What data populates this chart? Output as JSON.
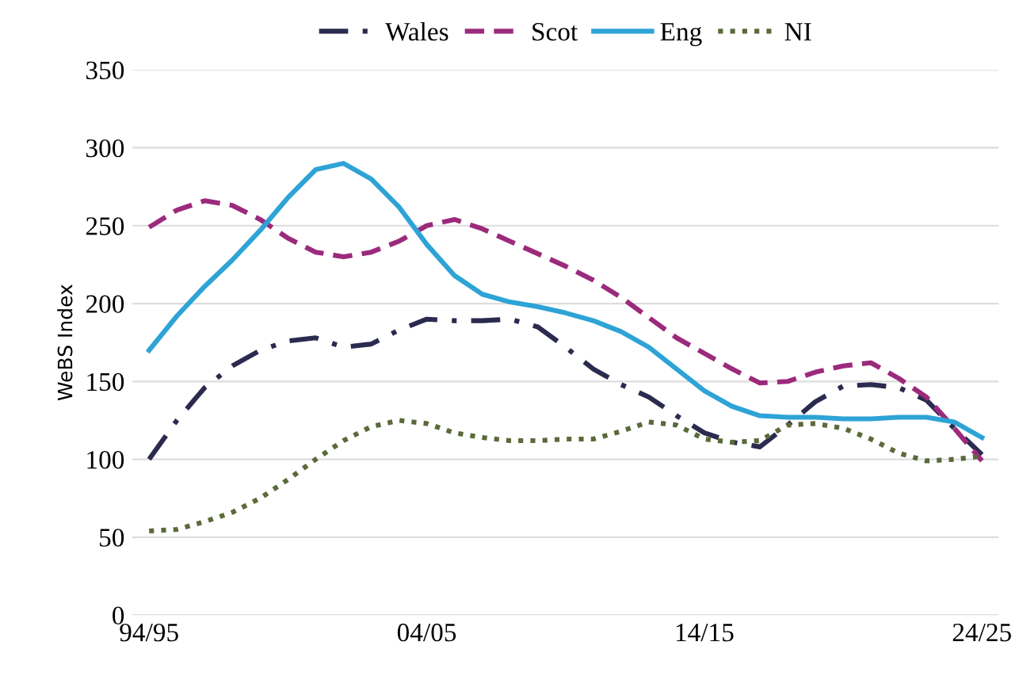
{
  "chart_data": {
    "type": "line",
    "ylabel": "WeBS Index",
    "categories": [
      "94/95",
      null,
      null,
      null,
      null,
      null,
      null,
      null,
      null,
      null,
      "04/05",
      null,
      null,
      null,
      null,
      null,
      null,
      null,
      null,
      null,
      "14/15",
      null,
      null,
      null,
      null,
      null,
      null,
      null,
      null,
      null,
      "24/25"
    ],
    "series": [
      {
        "name": "Wales",
        "color": "#2b2a4f",
        "line_style": "dashdot",
        "values": [
          100,
          125,
          146,
          160,
          170,
          176,
          178,
          172,
          174,
          183,
          190,
          189,
          189,
          190,
          185,
          172,
          158,
          148,
          140,
          128,
          117,
          111,
          108,
          122,
          137,
          147,
          148,
          146,
          138,
          120,
          103
        ]
      },
      {
        "name": "Scot",
        "color": "#9b2a7c",
        "line_style": "dashed",
        "values": [
          249,
          260,
          266,
          263,
          254,
          242,
          233,
          230,
          233,
          240,
          250,
          254,
          248,
          240,
          232,
          224,
          215,
          204,
          191,
          178,
          168,
          158,
          149,
          150,
          156,
          160,
          162,
          152,
          140,
          120,
          99
        ]
      },
      {
        "name": "Eng",
        "color": "#2ea3d6",
        "line_style": "solid",
        "values": [
          170,
          192,
          211,
          228,
          247,
          268,
          286,
          290,
          280,
          262,
          238,
          218,
          206,
          201,
          198,
          194,
          189,
          182,
          172,
          158,
          144,
          134,
          128,
          127,
          127,
          126,
          126,
          127,
          127,
          124,
          114
        ]
      },
      {
        "name": "NI",
        "color": "#5a6a3a",
        "line_style": "dotted",
        "values": [
          54,
          55,
          60,
          66,
          75,
          87,
          100,
          112,
          121,
          125,
          123,
          117,
          114,
          112,
          112,
          113,
          113,
          118,
          124,
          122,
          113,
          111,
          112,
          122,
          123,
          120,
          113,
          104,
          99,
          100,
          102
        ]
      }
    ],
    "ylim": [
      0,
      350
    ],
    "yticks": [
      0,
      50,
      100,
      150,
      200,
      250,
      300,
      350
    ],
    "grid": "y",
    "legend": "top"
  }
}
